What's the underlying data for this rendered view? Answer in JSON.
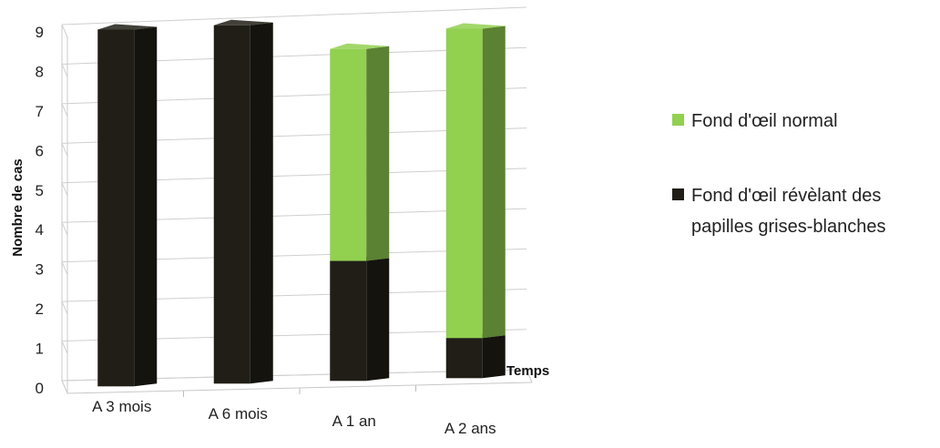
{
  "chart_data": {
    "type": "bar",
    "stacked": true,
    "view": "3d",
    "categories": [
      "A 3 mois",
      "A 6 mois",
      "A 1 an",
      "A 2 ans"
    ],
    "series": [
      {
        "name": "Fond d'œil révèlant des papilles grises-blanches",
        "color": "#201e16",
        "values": [
          9,
          9,
          3,
          1
        ]
      },
      {
        "name": "Fond d'œil normal",
        "color": "#92d050",
        "values": [
          0,
          0,
          5.3,
          7.7
        ]
      }
    ],
    "title": "",
    "xlabel": "Temps",
    "ylabel": "Nombre de cas",
    "ylim": [
      0,
      9
    ],
    "yticks": [
      0,
      1,
      2,
      3,
      4,
      5,
      6,
      7,
      8,
      9
    ],
    "grid": true,
    "legend": {
      "position": "right",
      "entries": [
        {
          "lines": [
            "Fond d'œil normal"
          ],
          "color": "#92d050"
        },
        {
          "lines": [
            "Fond d'œil révèlant des",
            "papilles grises-blanches"
          ],
          "color": "#201e16"
        }
      ]
    }
  }
}
